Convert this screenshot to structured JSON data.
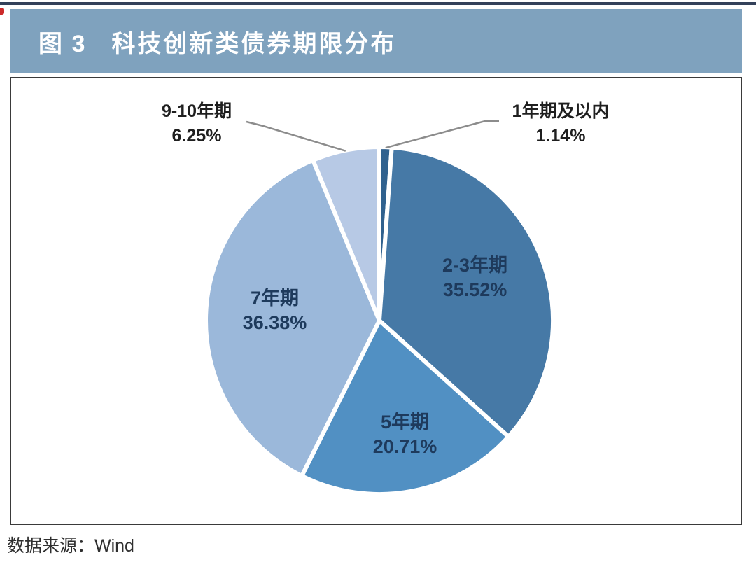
{
  "header": {
    "figure_label": "图 3",
    "title": "科技创新类债券期限分布",
    "bg_color": "#7fa2be",
    "text_color": "#ffffff"
  },
  "footer": {
    "source_label": "数据来源：Wind"
  },
  "accents": {
    "top_rule_color": "#33415a",
    "left_mark_color": "#cc2a2a",
    "chart_border_color": "#3a3a3a",
    "leader_line_color": "#8c8c8c",
    "inside_label_color": "#1e3a5c",
    "outside_label_color": "#1f1f1f"
  },
  "chart_data": {
    "type": "pie",
    "title": "科技创新类债券期限分布",
    "unit": "%",
    "direction": "clockwise",
    "start_angle_deg": 0,
    "legend": "none",
    "categories": [
      "1年期及以内",
      "2-3年期",
      "5年期",
      "7年期",
      "9-10年期"
    ],
    "values": [
      1.14,
      35.52,
      20.71,
      36.38,
      6.25
    ],
    "slices": [
      {
        "label": "1年期及以内",
        "value": 1.14,
        "display": "1.14%",
        "color": "#30618e",
        "label_placement": "outside-right"
      },
      {
        "label": "2-3年期",
        "value": 35.52,
        "display": "35.52%",
        "color": "#4679a6",
        "label_placement": "inside"
      },
      {
        "label": "5年期",
        "value": 20.71,
        "display": "20.71%",
        "color": "#5190c3",
        "label_placement": "inside"
      },
      {
        "label": "7年期",
        "value": 36.38,
        "display": "36.38%",
        "color": "#9bb8da",
        "label_placement": "inside"
      },
      {
        "label": "9-10年期",
        "value": 6.25,
        "display": "6.25%",
        "color": "#b7c9e5",
        "label_placement": "outside-left"
      }
    ]
  }
}
